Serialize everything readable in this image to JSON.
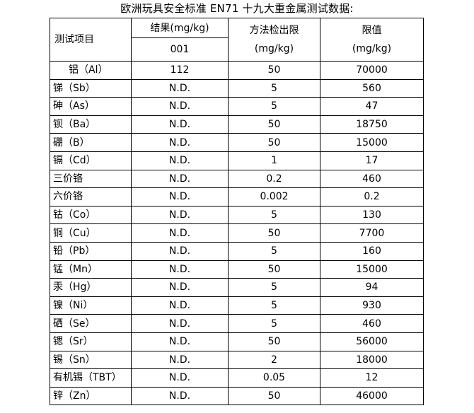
{
  "title": "欧洲玩具安全标准 EN71 十九大重金属测试数据:",
  "header": {
    "item": "测试项目",
    "result": "结果(mg/kg)",
    "sample_id": "001",
    "method_limit_line1": "方法检出限",
    "method_limit_line2": "(mg/kg)",
    "limit_line1": "限值",
    "limit_line2": "(mg/kg)"
  },
  "rows": [
    {
      "item": "铝（Al）",
      "result": "112",
      "mdl": "50",
      "limit": "70000"
    },
    {
      "item": "锑（Sb）",
      "result": "N.D.",
      "mdl": "5",
      "limit": "560"
    },
    {
      "item": "砷（As）",
      "result": "N.D.",
      "mdl": "5",
      "limit": "47"
    },
    {
      "item": "钡（Ba）",
      "result": "N.D.",
      "mdl": "50",
      "limit": "18750"
    },
    {
      "item": "硼（B）",
      "result": "N.D.",
      "mdl": "50",
      "limit": "15000"
    },
    {
      "item": "镉（Cd）",
      "result": "N.D.",
      "mdl": "1",
      "limit": "17"
    },
    {
      "item": "三价铬",
      "result": "N.D.",
      "mdl": "0.2",
      "limit": "460"
    },
    {
      "item": "六价铬",
      "result": "N.D.",
      "mdl": "0.002",
      "limit": "0.2"
    },
    {
      "item": "钴（Co）",
      "result": "N.D.",
      "mdl": "5",
      "limit": "130"
    },
    {
      "item": "铜（Cu）",
      "result": "N.D.",
      "mdl": "50",
      "limit": "7700"
    },
    {
      "item": "铅（Pb）",
      "result": "N.D.",
      "mdl": "5",
      "limit": "160"
    },
    {
      "item": "锰（Mn）",
      "result": "N.D.",
      "mdl": "50",
      "limit": "15000"
    },
    {
      "item": "汞（Hg）",
      "result": "N.D.",
      "mdl": "5",
      "limit": "94"
    },
    {
      "item": "镍（Ni）",
      "result": "N.D.",
      "mdl": "5",
      "limit": "930"
    },
    {
      "item": "硒（Se）",
      "result": "N.D.",
      "mdl": "5",
      "limit": "460"
    },
    {
      "item": "锶（Sr）",
      "result": "N.D.",
      "mdl": "50",
      "limit": "56000"
    },
    {
      "item": "锡（Sn）",
      "result": "N.D.",
      "mdl": "2",
      "limit": "18000"
    },
    {
      "item": "有机锡（TBT）",
      "result": "N.D.",
      "mdl": "0.05",
      "limit": "12"
    },
    {
      "item": "锌（Zn）",
      "result": "N.D.",
      "mdl": "50",
      "limit": "46000"
    }
  ]
}
